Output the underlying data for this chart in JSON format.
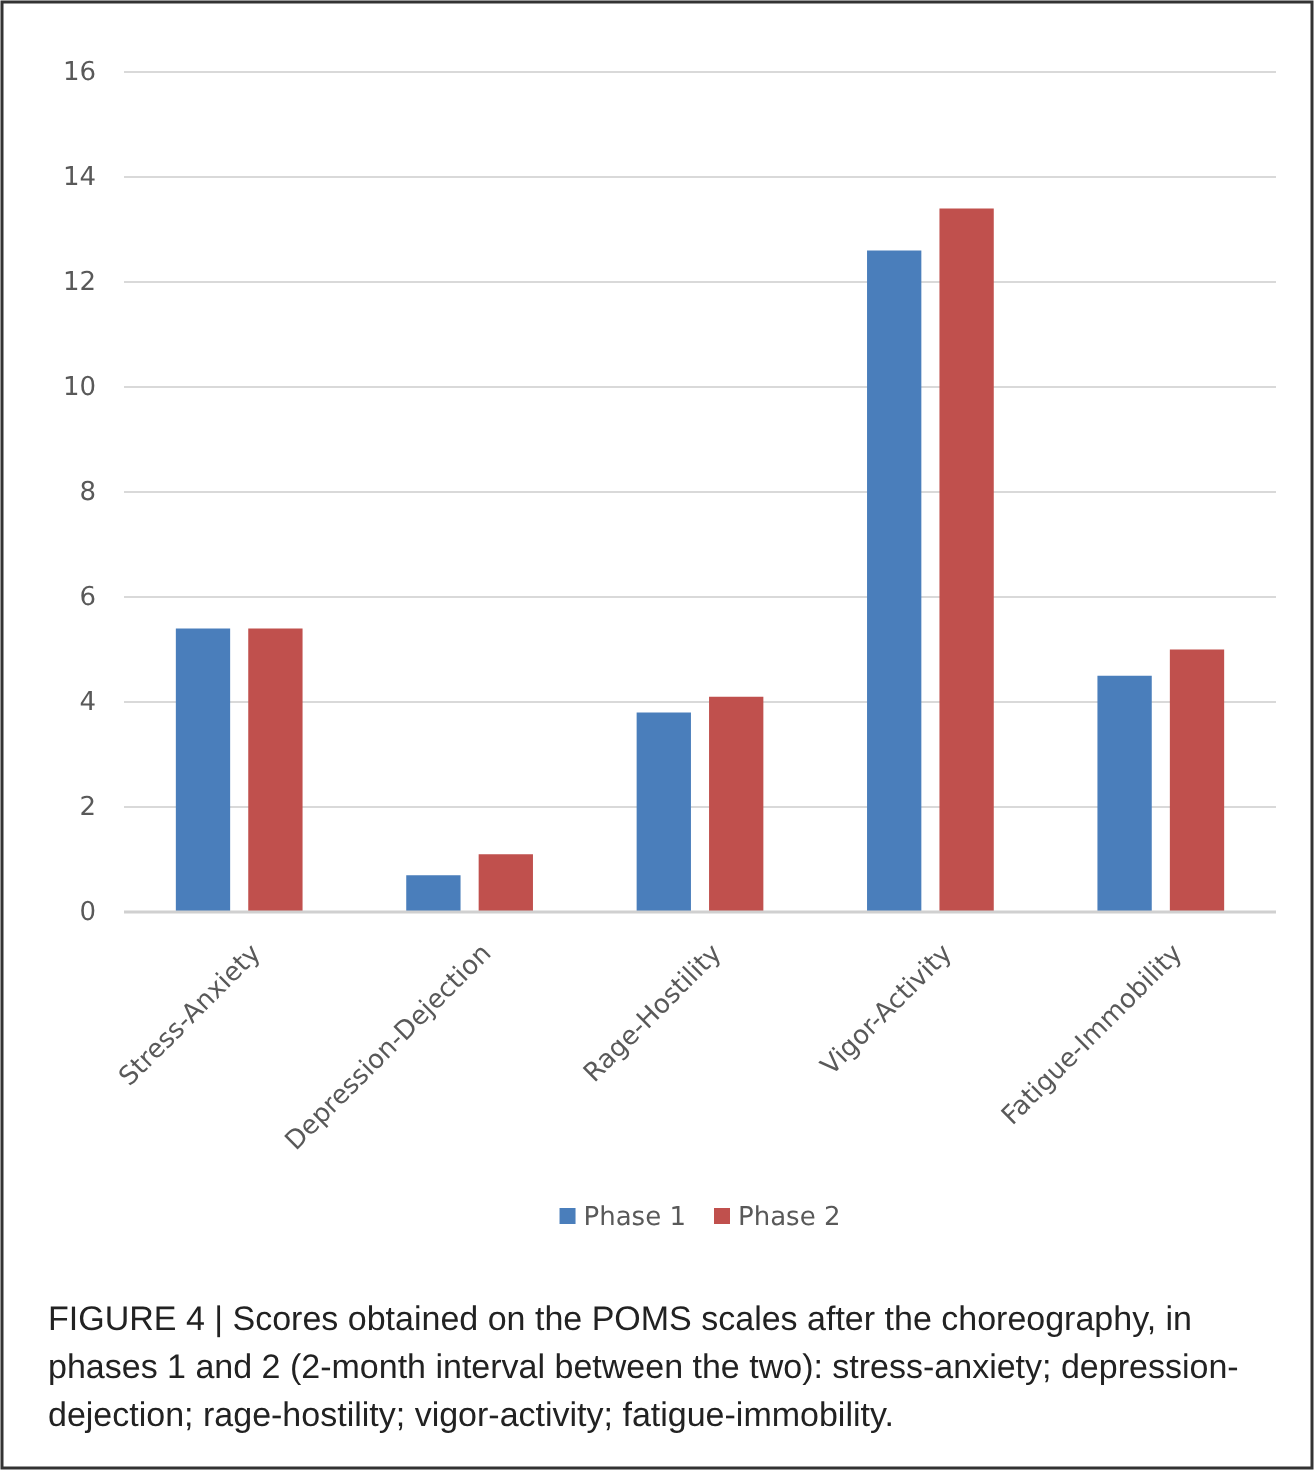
{
  "chart_data": {
    "type": "bar",
    "categories": [
      "Stress-Anxiety",
      "Depression-Dejection",
      "Rage-Hostility",
      "Vigor-Activity",
      "Fatigue-Immobility"
    ],
    "series": [
      {
        "name": "Phase 1",
        "color": "#4a7ebb",
        "values": [
          5.4,
          0.7,
          3.8,
          12.6,
          4.5
        ]
      },
      {
        "name": "Phase 2",
        "color": "#c0504d",
        "values": [
          5.4,
          1.1,
          4.1,
          13.4,
          5.0
        ]
      }
    ],
    "ylim": [
      0,
      16
    ],
    "yticks": [
      0,
      2,
      4,
      6,
      8,
      10,
      12,
      14,
      16
    ],
    "grid": "y",
    "legend": "bottom",
    "annotations": [
      "FIGURE 4 | Scores obtained on the POMS scales after the choreography, in phases 1 and 2 (2-month interval between the two): stress-anxiety; depression-dejection; rage-hostility; vigor-activity; fatigue-immobility."
    ]
  }
}
